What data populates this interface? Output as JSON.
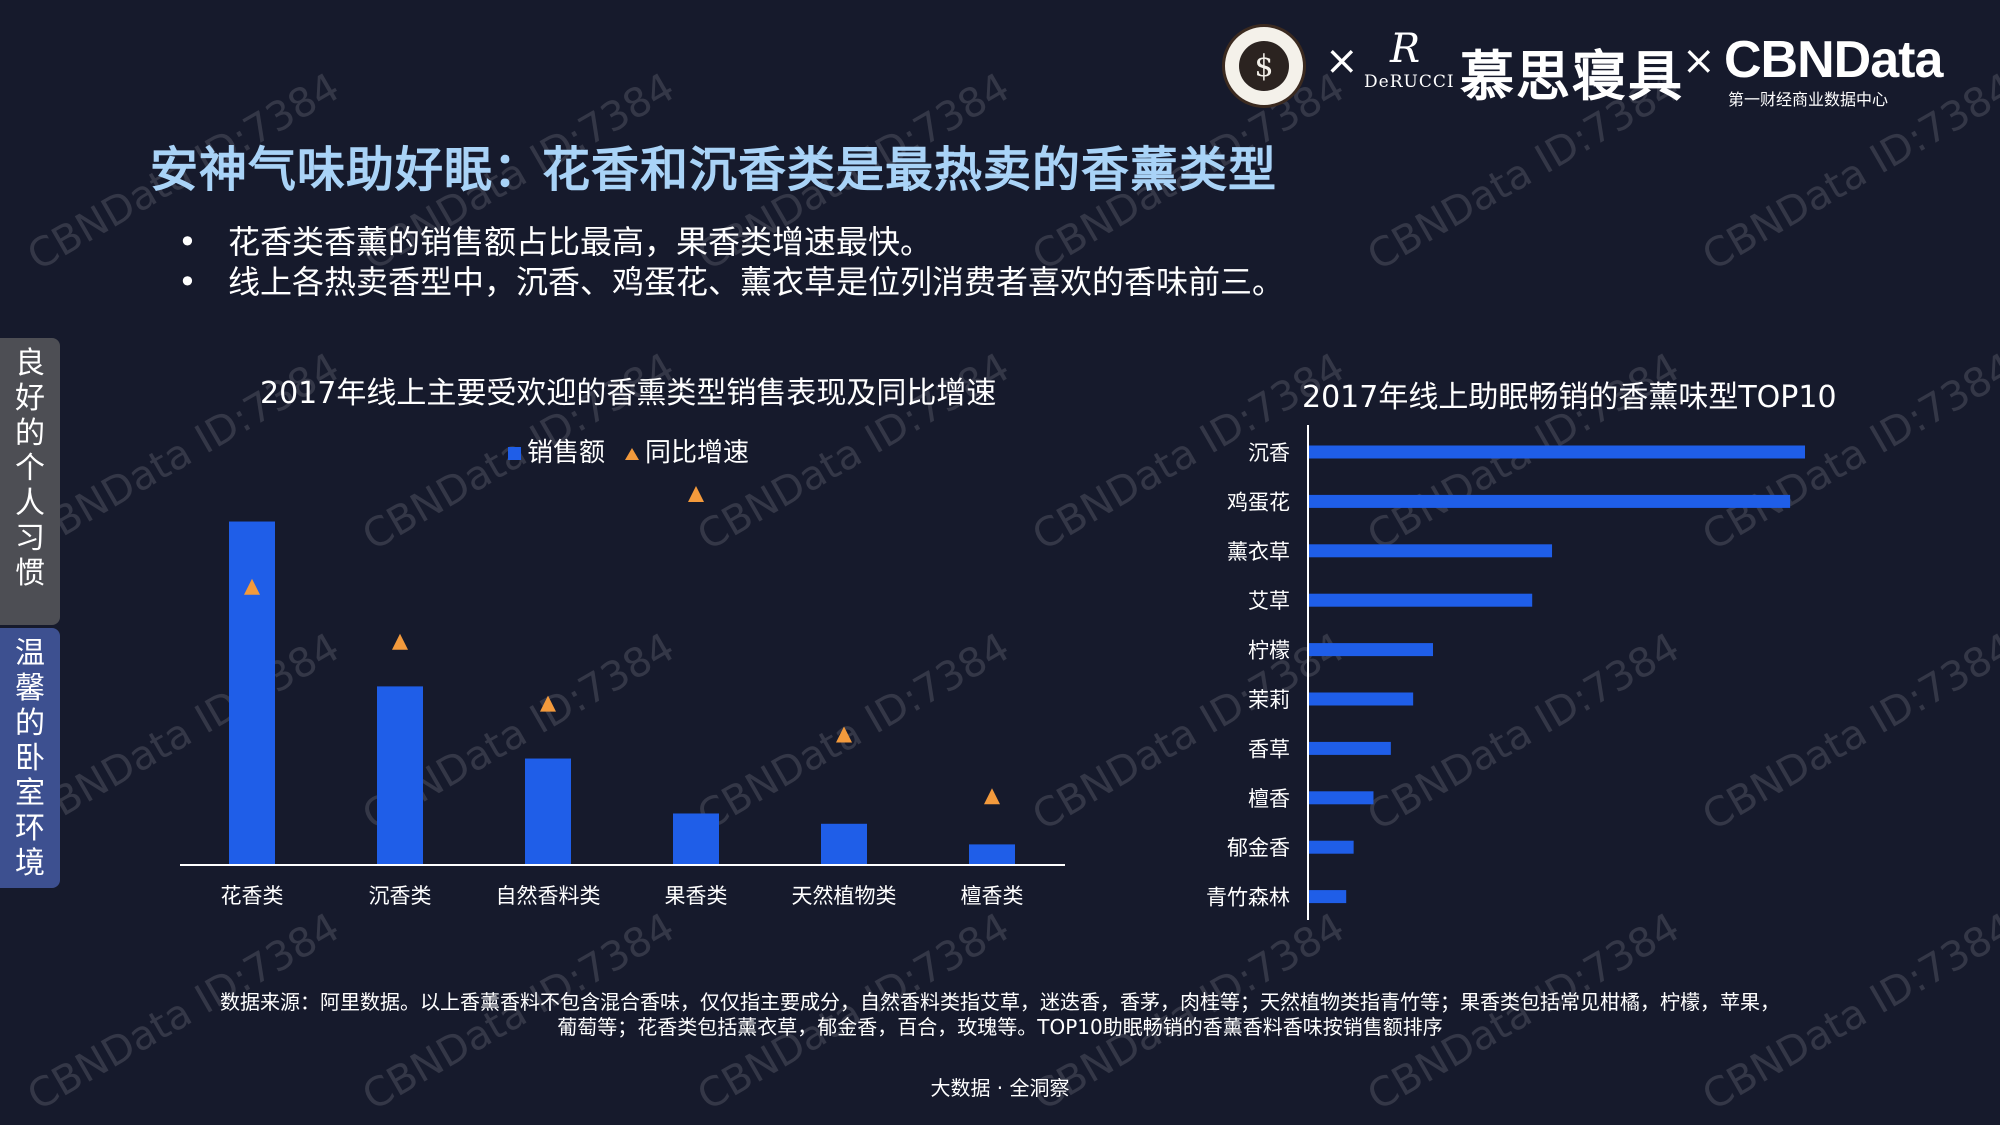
{
  "watermark_text": "CBNData ID:7384",
  "logos": {
    "seal_symbol": "$",
    "times": "×",
    "derucci_mark": "R",
    "derucci_name": "DeRUCCI",
    "musi_name": "慕思寝具",
    "cbndata_name": "CBNData",
    "cbndata_subtitle": "第一财经商业数据中心"
  },
  "title": "安神气味助好眠：花香和沉香类是最热卖的香薰类型",
  "bullets": [
    "花香类香薰的销售额占比最高，果香类增速最快。",
    "线上各热卖香型中，沉香、鸡蛋花、薰衣草是位列消费者喜欢的香味前三。"
  ],
  "bullet_symbol": "•",
  "side_tabs": [
    "良好的个人习惯",
    "温馨的卧室环境"
  ],
  "colors": {
    "bar": "#1f5ee8",
    "marker": "#f39a3c",
    "title": "#a9d3f7",
    "background": "#161a2c"
  },
  "chart_data": [
    {
      "type": "bar",
      "title": "2017年线上主要受欢迎的香熏类型销售表现及同比增速",
      "categories": [
        "花香类",
        "沉香类",
        "自然香料类",
        "果香类",
        "天然植物类",
        "檀香类"
      ],
      "series": [
        {
          "name": "销售额",
          "kind": "bar",
          "values": [
            100,
            52,
            31,
            15,
            12,
            6
          ]
        },
        {
          "name": "同比增速",
          "kind": "scatter",
          "marker": "triangle",
          "values": [
            81,
            65,
            47,
            108,
            38,
            20
          ]
        }
      ],
      "ylim": [
        0,
        115
      ],
      "y_axis_shown": false,
      "legend": "top-center"
    },
    {
      "type": "bar",
      "orientation": "horizontal",
      "title": "2017年线上助眠畅销的香薰味型TOP10",
      "categories": [
        "沉香",
        "鸡蛋花",
        "薰衣草",
        "艾草",
        "柠檬",
        "茉莉",
        "香草",
        "檀香",
        "郁金香",
        "青竹森林"
      ],
      "values": [
        100,
        97,
        49,
        45,
        25,
        21,
        16.5,
        13,
        9,
        7.5
      ],
      "xlim": [
        0,
        100
      ],
      "x_axis_shown": false
    }
  ],
  "footnote": [
    "数据来源：阿里数据。以上香薰香料不包含混合香味，仅仅指主要成分，自然香料类指艾草，迷迭香，香茅，肉桂等；天然植物类指青竹等；果香类包括常见柑橘，柠檬，苹果，",
    "葡萄等；花香类包括薰衣草，郁金香，百合，玫瑰等。TOP10助眠畅销的香薰香料香味按销售额排序"
  ],
  "footer": "大数据 · 全洞察"
}
